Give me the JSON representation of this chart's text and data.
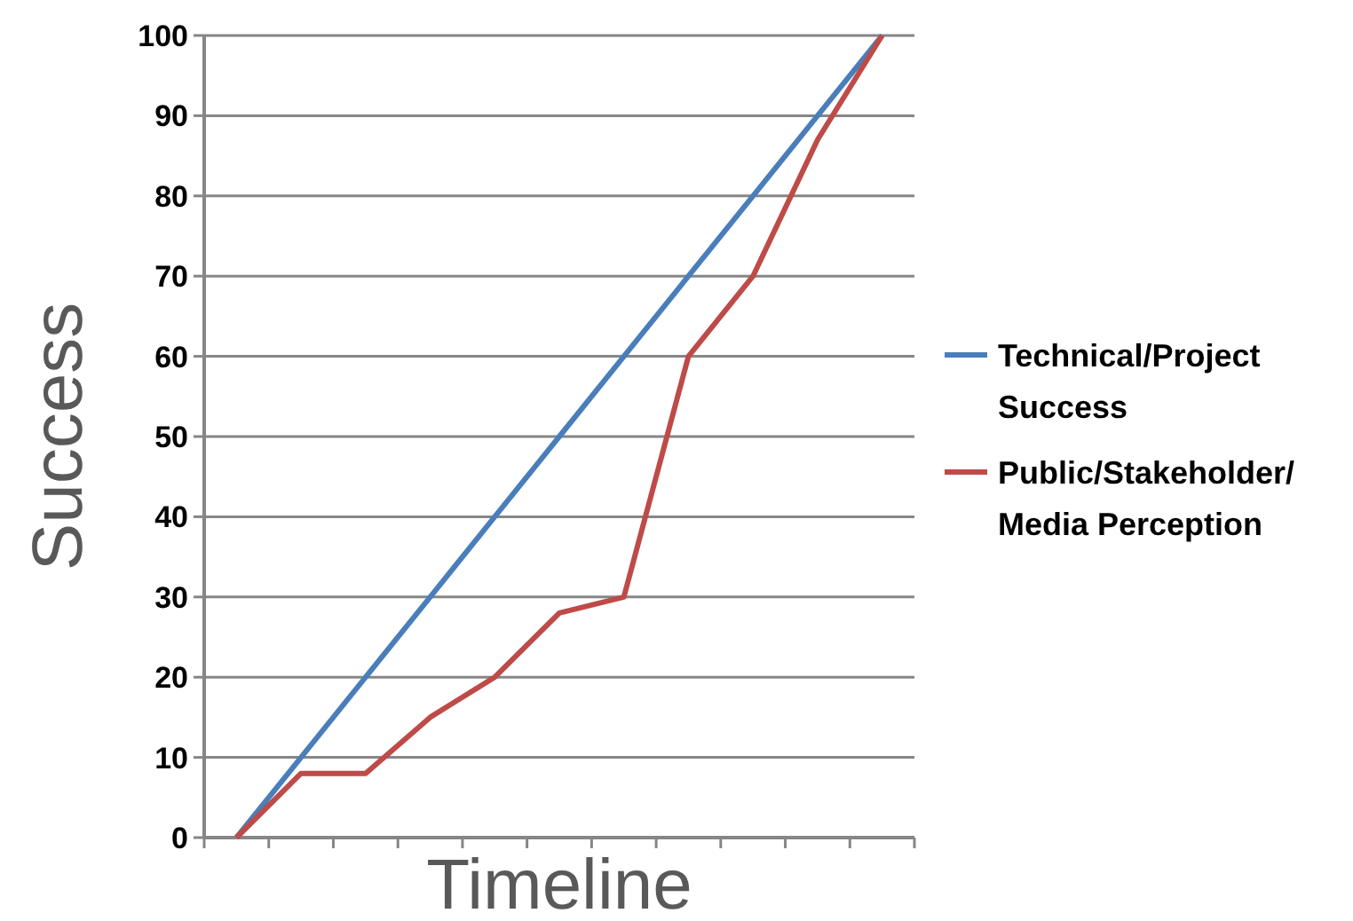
{
  "chart_data": {
    "type": "line",
    "xlabel": "Timeline",
    "ylabel": "Success",
    "categories": [
      null,
      null,
      null,
      null,
      null,
      null,
      null,
      null,
      null,
      null,
      null
    ],
    "series": [
      {
        "name": "Technical/Project Success",
        "color": "#4a7ebb",
        "values": [
          0,
          10,
          20,
          30,
          40,
          50,
          60,
          70,
          80,
          90,
          100
        ]
      },
      {
        "name": "Public/Stakeholder/ Media Perception",
        "color": "#be4b48",
        "values": [
          0,
          8,
          8,
          15,
          20,
          28,
          30,
          60,
          70,
          87,
          100
        ]
      }
    ],
    "ylim": [
      0,
      100
    ],
    "yticks": [
      0,
      10,
      20,
      30,
      40,
      50,
      60,
      70,
      80,
      90,
      100
    ],
    "grid": "y",
    "legend": "right",
    "marker": "none",
    "line_style": "solid"
  }
}
